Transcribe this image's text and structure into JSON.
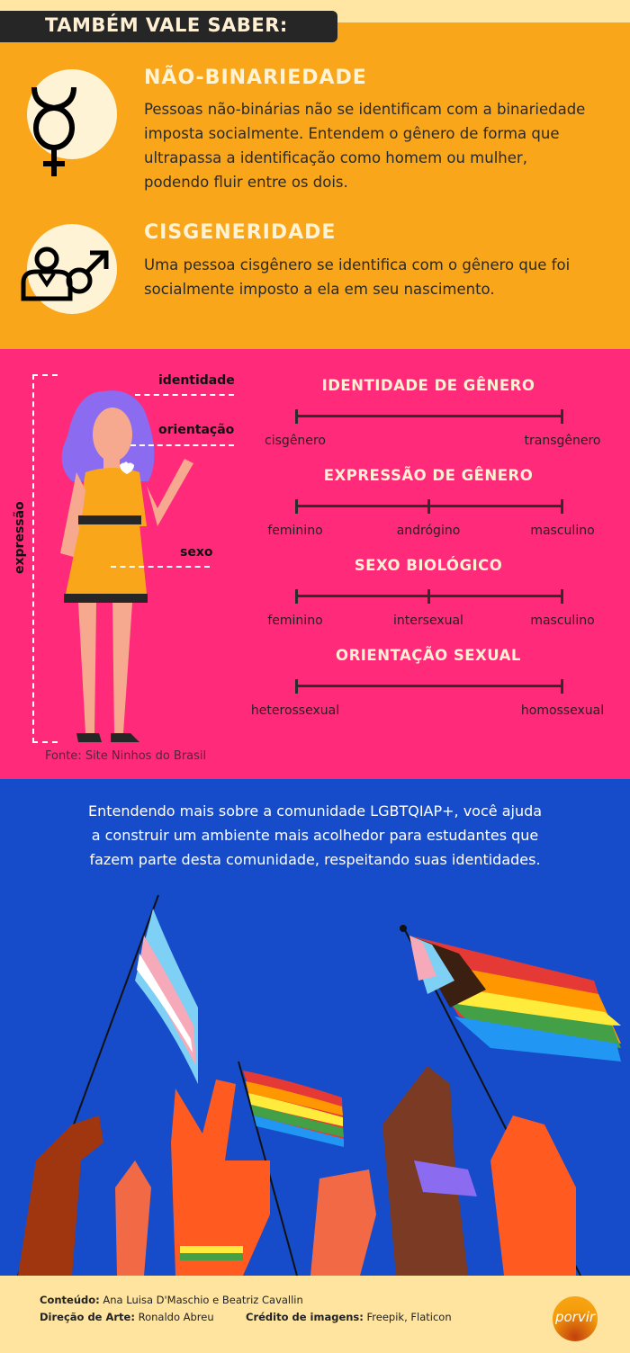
{
  "header": {
    "title": "TAMBÉM VALE SABER:"
  },
  "definitions": [
    {
      "icon": "non-binary-symbol-icon",
      "title": "NÃO-BINARIEDADE",
      "text_lines": [
        "Pessoas não-binárias não se identificam com a binariedade",
        "imposta socialmente. Entendem o gênero de forma que",
        "ultrapassa a identificação como homem ou mulher,",
        "podendo fluir entre os dois."
      ]
    },
    {
      "icon": "cisgender-person-icon",
      "title": "CISGENERIDADE",
      "text_lines": [
        "Uma pessoa cisgênero se identifica com o gênero que foi",
        "socialmente imposto a ela em seu nascimento."
      ]
    }
  ],
  "figure": {
    "labels": {
      "identity": "identidade",
      "orientation": "orientação",
      "sex": "sexo",
      "expression": "expressão"
    },
    "source": "Fonte: Site Ninhos do Brasil"
  },
  "spectrums": [
    {
      "title": "IDENTIDADE DE GÊNERO",
      "labels": [
        "cisgênero",
        "transgênero"
      ]
    },
    {
      "title": "EXPRESSÃO DE GÊNERO",
      "labels": [
        "feminino",
        "andrógino",
        "masculino"
      ]
    },
    {
      "title": "SEXO BIOLÓGICO",
      "labels": [
        "feminino",
        "intersexual",
        "masculino"
      ]
    },
    {
      "title": "ORIENTAÇÃO SEXUAL",
      "labels": [
        "heterossexual",
        "homossexual"
      ]
    }
  ],
  "closing": {
    "text_lines": [
      "Entendendo mais sobre a comunidade LGBTQIAP+, você ajuda",
      "a construir um ambiente mais acolhedor para estudantes que",
      "fazem parte desta comunidade, respeitando suas identidades."
    ]
  },
  "footer": {
    "content_label": "Conteúdo:",
    "content_value": " Ana Luisa D'Maschio e Beatriz Cavallin",
    "art_label": "Direção de Arte:",
    "art_value": " Ronaldo Abreu",
    "credit_label": "Crédito de imagens:",
    "credit_value": " Freepik, Flaticon",
    "logo": "porvir"
  },
  "colors": {
    "orange": "#F9A61A",
    "pink": "#FF2A7A",
    "blue": "#164CC9",
    "cream": "#FFE6A3",
    "dark": "#262626"
  }
}
